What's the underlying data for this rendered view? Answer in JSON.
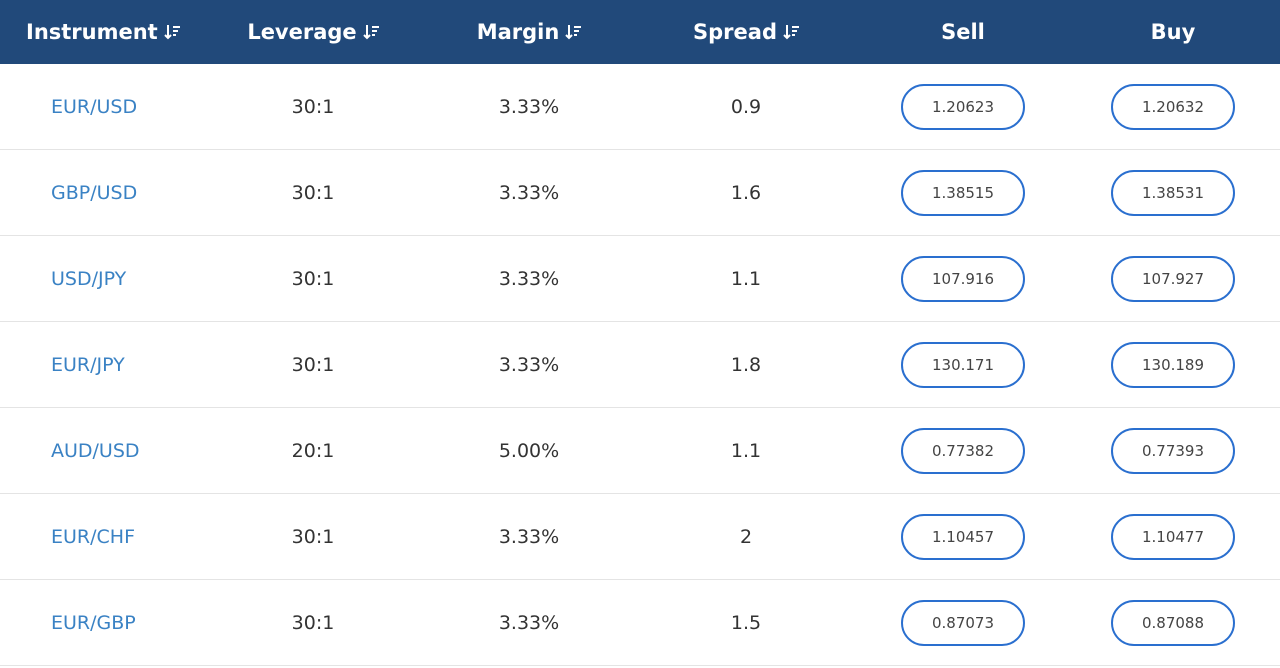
{
  "header": {
    "instrument": "Instrument",
    "leverage": "Leverage",
    "margin": "Margin",
    "spread": "Spread",
    "sell": "Sell",
    "buy": "Buy"
  },
  "rows": [
    {
      "instrument": "EUR/USD",
      "leverage": "30:1",
      "margin": "3.33%",
      "spread": "0.9",
      "sell": "1.20623",
      "buy": "1.20632"
    },
    {
      "instrument": "GBP/USD",
      "leverage": "30:1",
      "margin": "3.33%",
      "spread": "1.6",
      "sell": "1.38515",
      "buy": "1.38531"
    },
    {
      "instrument": "USD/JPY",
      "leverage": "30:1",
      "margin": "3.33%",
      "spread": "1.1",
      "sell": "107.916",
      "buy": "107.927"
    },
    {
      "instrument": "EUR/JPY",
      "leverage": "30:1",
      "margin": "3.33%",
      "spread": "1.8",
      "sell": "130.171",
      "buy": "130.189"
    },
    {
      "instrument": "AUD/USD",
      "leverage": "20:1",
      "margin": "5.00%",
      "spread": "1.1",
      "sell": "0.77382",
      "buy": "0.77393"
    },
    {
      "instrument": "EUR/CHF",
      "leverage": "30:1",
      "margin": "3.33%",
      "spread": "2",
      "sell": "1.10457",
      "buy": "1.10477"
    },
    {
      "instrument": "EUR/GBP",
      "leverage": "30:1",
      "margin": "3.33%",
      "spread": "1.5",
      "sell": "0.87073",
      "buy": "0.87088"
    }
  ],
  "icons": {
    "sort": "sort-descending-icon"
  },
  "colors": {
    "header_bg": "#21497a",
    "instrument_link": "#3a82c4",
    "button_border": "#2a6fcf"
  }
}
